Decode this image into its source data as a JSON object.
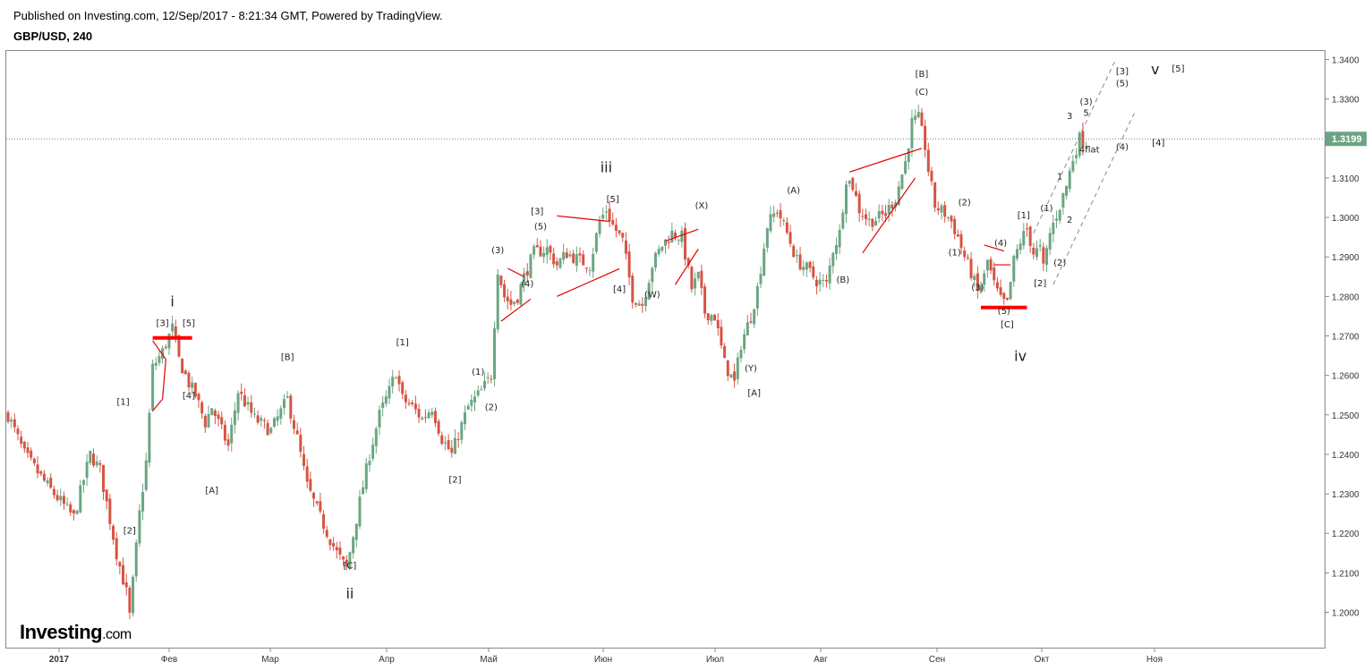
{
  "header": {
    "published": "Published on Investing.com, 12/Sep/2017 - 8:21:34 GMT, Powered by TradingView.",
    "symbol": "GBP/USD, 240"
  },
  "logo": {
    "main": "Investing",
    "suffix": ".com"
  },
  "chart_data": {
    "type": "candlestick",
    "ylim": [
      1.19,
      1.342
    ],
    "y_ticks": [
      "1.3400",
      "1.3300",
      "1.3200",
      "1.3100",
      "1.3000",
      "1.2900",
      "1.2800",
      "1.2700",
      "1.2600",
      "1.2500",
      "1.2400",
      "1.2300",
      "1.2200",
      "1.2100",
      "1.2000"
    ],
    "x_ticks": [
      "2017",
      "Фев",
      "Мар",
      "Апр",
      "Май",
      "Июн",
      "Июл",
      "Авг",
      "Сен",
      "Окт",
      "Ноя"
    ],
    "last_price": {
      "value": 1.3199,
      "label": "1.3199"
    },
    "colors": {
      "up": "#6ba583",
      "down": "#d75442",
      "annotation": "#e00000",
      "last_price": "#4a8a7a",
      "support": "#ff0000"
    },
    "path": [
      [
        0,
        1.25
      ],
      [
        5,
        1.24
      ],
      [
        12,
        1.232
      ],
      [
        20,
        1.224
      ],
      [
        25,
        1.24
      ],
      [
        28,
        1.236
      ],
      [
        33,
        1.215
      ],
      [
        36,
        1.205
      ],
      [
        37,
        1.199
      ],
      [
        40,
        1.225
      ],
      [
        42,
        1.238
      ],
      [
        44,
        1.262
      ],
      [
        47,
        1.266
      ],
      [
        50,
        1.272
      ],
      [
        52,
        1.264
      ],
      [
        55,
        1.258
      ],
      [
        57,
        1.255
      ],
      [
        60,
        1.248
      ],
      [
        62,
        1.252
      ],
      [
        67,
        1.242
      ],
      [
        70,
        1.256
      ],
      [
        75,
        1.249
      ],
      [
        80,
        1.246
      ],
      [
        85,
        1.254
      ],
      [
        88,
        1.244
      ],
      [
        91,
        1.232
      ],
      [
        95,
        1.224
      ],
      [
        100,
        1.215
      ],
      [
        103,
        1.211
      ],
      [
        107,
        1.228
      ],
      [
        110,
        1.24
      ],
      [
        113,
        1.25
      ],
      [
        116,
        1.256
      ],
      [
        118,
        1.261
      ],
      [
        120,
        1.254
      ],
      [
        123,
        1.252
      ],
      [
        126,
        1.249
      ],
      [
        129,
        1.252
      ],
      [
        132,
        1.244
      ],
      [
        135,
        1.24
      ],
      [
        137,
        1.245
      ],
      [
        140,
        1.252
      ],
      [
        142,
        1.254
      ],
      [
        144,
        1.256
      ],
      [
        147,
        1.26
      ],
      [
        149,
        1.287
      ],
      [
        151,
        1.28
      ],
      [
        153,
        1.278
      ],
      [
        155,
        1.28
      ],
      [
        157,
        1.285
      ],
      [
        160,
        1.291
      ],
      [
        164,
        1.292
      ],
      [
        167,
        1.288
      ],
      [
        170,
        1.291
      ],
      [
        174,
        1.289
      ],
      [
        177,
        1.288
      ],
      [
        180,
        1.299
      ],
      [
        182,
        1.302
      ],
      [
        184,
        1.298
      ],
      [
        187,
        1.294
      ],
      [
        190,
        1.28
      ],
      [
        193,
        1.278
      ],
      [
        196,
        1.288
      ],
      [
        199,
        1.293
      ],
      [
        202,
        1.296
      ],
      [
        205,
        1.295
      ],
      [
        208,
        1.282
      ],
      [
        210,
        1.285
      ],
      [
        212,
        1.276
      ],
      [
        215,
        1.275
      ],
      [
        218,
        1.263
      ],
      [
        221,
        1.258
      ],
      [
        223,
        1.268
      ],
      [
        226,
        1.275
      ],
      [
        228,
        1.282
      ],
      [
        231,
        1.298
      ],
      [
        234,
        1.302
      ],
      [
        237,
        1.296
      ],
      [
        240,
        1.289
      ],
      [
        243,
        1.287
      ],
      [
        246,
        1.284
      ],
      [
        249,
        1.283
      ],
      [
        251,
        1.292
      ],
      [
        253,
        1.296
      ],
      [
        255,
        1.31
      ],
      [
        257,
        1.308
      ],
      [
        259,
        1.302
      ],
      [
        262,
        1.299
      ],
      [
        265,
        1.3
      ],
      [
        267,
        1.301
      ],
      [
        270,
        1.305
      ],
      [
        273,
        1.314
      ],
      [
        275,
        1.324
      ],
      [
        277,
        1.325
      ],
      [
        279,
        1.318
      ],
      [
        280,
        1.312
      ],
      [
        282,
        1.303
      ],
      [
        285,
        1.301
      ],
      [
        287,
        1.299
      ],
      [
        289,
        1.295
      ],
      [
        291,
        1.29
      ],
      [
        293,
        1.286
      ],
      [
        295,
        1.281
      ],
      [
        297,
        1.285
      ],
      [
        298,
        1.289
      ],
      [
        300,
        1.283
      ],
      [
        302,
        1.279
      ],
      [
        304,
        1.278
      ],
      [
        306,
        1.289
      ],
      [
        308,
        1.294
      ],
      [
        310,
        1.297
      ],
      [
        312,
        1.291
      ],
      [
        314,
        1.292
      ],
      [
        315,
        1.287
      ],
      [
        317,
        1.296
      ],
      [
        320,
        1.303
      ],
      [
        322,
        1.308
      ],
      [
        324,
        1.315
      ],
      [
        326,
        1.32
      ],
      [
        328,
        1.319
      ]
    ],
    "wave_labels": {
      "major": [
        {
          "text": "i",
          "t": 50,
          "p": 1.2775
        },
        {
          "text": "ii",
          "t": 104,
          "p": 1.2035
        },
        {
          "text": "iii",
          "t": 182,
          "p": 1.3115
        },
        {
          "text": "iv",
          "t": 308,
          "p": 1.2637
        },
        {
          "text": "v",
          "t": 349,
          "p": 1.3363
        }
      ],
      "minor": [
        {
          "text": "[3]",
          "t": 47,
          "p": 1.2725
        },
        {
          "text": "[5]",
          "t": 55,
          "p": 1.2725
        },
        {
          "text": "[1]",
          "t": 35,
          "p": 1.2526
        },
        {
          "text": "[2]",
          "t": 37,
          "p": 1.2199
        },
        {
          "text": "[4]",
          "t": 55,
          "p": 1.2541
        },
        {
          "text": "[A]",
          "t": 62,
          "p": 1.2301
        },
        {
          "text": "[B]",
          "t": 85,
          "p": 1.2639
        },
        {
          "text": "[C]",
          "t": 104,
          "p": 1.2111
        },
        {
          "text": "[1]",
          "t": 120,
          "p": 1.2676
        },
        {
          "text": "[2]",
          "t": 136,
          "p": 1.2329
        },
        {
          "text": "(1)",
          "t": 143,
          "p": 1.2601
        },
        {
          "text": "(2)",
          "t": 147,
          "p": 1.2512
        },
        {
          "text": "(3)",
          "t": 149,
          "p": 1.291
        },
        {
          "text": "(4)",
          "t": 158,
          "p": 1.2825
        },
        {
          "text": "[3]",
          "t": 161,
          "p": 1.3008
        },
        {
          "text": "(5)",
          "t": 162,
          "p": 1.297
        },
        {
          "text": "[5]",
          "t": 184,
          "p": 1.3039
        },
        {
          "text": "[4]",
          "t": 186,
          "p": 1.2811
        },
        {
          "text": "(W)",
          "t": 196,
          "p": 1.2797
        },
        {
          "text": "(X)",
          "t": 211,
          "p": 1.3023
        },
        {
          "text": "(Y)",
          "t": 226,
          "p": 1.2611
        },
        {
          "text": "[A]",
          "t": 227,
          "p": 1.2548
        },
        {
          "text": "(A)",
          "t": 239,
          "p": 1.3061
        },
        {
          "text": "(B)",
          "t": 254,
          "p": 1.2835
        },
        {
          "text": "[B]",
          "t": 278,
          "p": 1.3356
        },
        {
          "text": "(C)",
          "t": 278,
          "p": 1.3311
        },
        {
          "text": "(2)",
          "t": 291,
          "p": 1.3031
        },
        {
          "text": "(1)",
          "t": 288,
          "p": 1.2904
        },
        {
          "text": "(4)",
          "t": 302,
          "p": 1.2928
        },
        {
          "text": "(3)",
          "t": 295,
          "p": 1.2815
        },
        {
          "text": "(5)",
          "t": 303,
          "p": 1.2755
        },
        {
          "text": "[C]",
          "t": 304,
          "p": 1.2721
        },
        {
          "text": "[1]",
          "t": 309,
          "p": 1.2998
        },
        {
          "text": "(1)",
          "t": 316,
          "p": 1.3016
        },
        {
          "text": "(2)",
          "t": 320,
          "p": 1.2878
        },
        {
          "text": "[2]",
          "t": 314,
          "p": 1.2826
        },
        {
          "text": "1",
          "t": 320,
          "p": 1.3096
        },
        {
          "text": "2",
          "t": 323,
          "p": 1.2987
        },
        {
          "text": "3",
          "t": 323,
          "p": 1.3249
        },
        {
          "text": "5",
          "t": 328,
          "p": 1.3257
        },
        {
          "text": "(3)",
          "t": 328,
          "p": 1.3286
        },
        {
          "text": "4flat",
          "t": 329,
          "p": 1.3164
        },
        {
          "text": "(4)",
          "t": 339,
          "p": 1.3171
        },
        {
          "text": "[4]",
          "t": 350,
          "p": 1.3181
        },
        {
          "text": "[3]",
          "t": 339,
          "p": 1.3363
        },
        {
          "text": "(5)",
          "t": 339,
          "p": 1.3332
        },
        {
          "text": "[5]",
          "t": 356,
          "p": 1.3369
        }
      ]
    },
    "annotation_lines": [
      [
        44,
        1.2688,
        48,
        1.2641
      ],
      [
        48,
        1.2641,
        47,
        1.254
      ],
      [
        47,
        1.254,
        44,
        1.251
      ],
      [
        150,
        1.2737,
        159,
        1.2793
      ],
      [
        152,
        1.2871,
        157,
        1.285
      ],
      [
        167,
        1.3004,
        183,
        1.299
      ],
      [
        167,
        1.28,
        186,
        1.287
      ],
      [
        200,
        1.294,
        210,
        1.297
      ],
      [
        203,
        1.283,
        210,
        1.292
      ],
      [
        256,
        1.3115,
        278,
        1.3175
      ],
      [
        260,
        1.291,
        276,
        1.31
      ],
      [
        297,
        1.293,
        303,
        1.2915
      ],
      [
        300,
        1.288,
        305,
        1.288
      ]
    ],
    "channels": [
      {
        "dash": true,
        "from": [
          312,
          1.296
        ],
        "to": [
          337,
          1.34
        ]
      },
      {
        "dash": true,
        "from": [
          318,
          1.283
        ],
        "to": [
          343,
          1.327
        ]
      }
    ],
    "supports": [
      {
        "t1": 44,
        "t2": 56,
        "p": 1.2695
      },
      {
        "t1": 296,
        "t2": 310,
        "p": 1.2772
      }
    ]
  }
}
